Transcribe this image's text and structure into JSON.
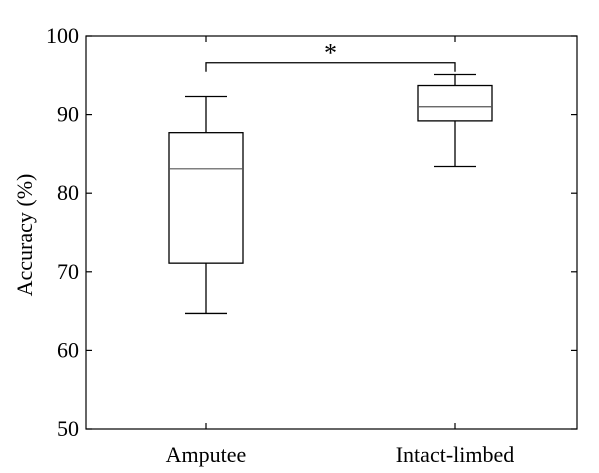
{
  "chart_data": {
    "type": "box",
    "categories": [
      "Amputee",
      "Intact-limbed"
    ],
    "boxes": [
      {
        "category": "Amputee",
        "whisker_low": 64.7,
        "q1": 71.1,
        "median": 83.1,
        "q3": 87.7,
        "whisker_high": 92.3
      },
      {
        "category": "Intact-limbed",
        "whisker_low": 83.4,
        "q1": 89.2,
        "median": 91.0,
        "q3": 93.7,
        "whisker_high": 95.1
      }
    ],
    "ylabel": "Accuracy (%)",
    "ylim": [
      50,
      100
    ],
    "yticks": [
      50,
      60,
      70,
      80,
      90,
      100
    ],
    "grid": false,
    "significance": {
      "between": [
        "Amputee",
        "Intact-limbed"
      ],
      "bracket_y": 96.6,
      "label": "*"
    }
  }
}
